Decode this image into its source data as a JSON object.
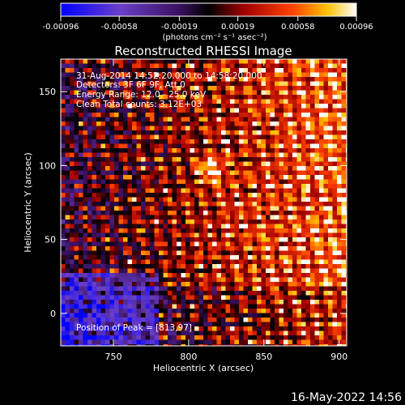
{
  "chart_data": {
    "type": "heatmap",
    "title": "Reconstructed RHESSI Image",
    "xlabel": "Heliocentric X (arcsec)",
    "ylabel": "Heliocentric Y (arcsec)",
    "xlim": [
      715,
      905
    ],
    "ylim": [
      -22,
      172
    ],
    "xticks": [
      750,
      800,
      850,
      900
    ],
    "yticks": [
      0,
      50,
      100,
      150
    ],
    "grid": false,
    "colorbar": {
      "position": "top",
      "range": [
        -0.00096,
        0.00096
      ],
      "ticks": [
        -0.00096,
        -0.00058,
        -0.00019,
        0.00019,
        0.00058,
        0.00096
      ],
      "tick_labels": [
        "-0.00096",
        "-0.00058",
        "-0.00019",
        "0.00019",
        "0.00058",
        "0.00096"
      ],
      "units": "(photons cm⁻² s⁻¹ asec⁻²)",
      "colors": [
        "#0000ff",
        "#6a3fc8",
        "#3a1060",
        "#000000",
        "#a00000",
        "#ff4000",
        "#ffc000",
        "#ffffff"
      ]
    },
    "annotations": {
      "time_range": "31-Aug-2014 14:52:20.000 to 14:58:20.000",
      "detectors": "Detectors: 3F 6F 9F, Att 0",
      "energy": "Energy Range: 12.0 - 25.0 keV",
      "method": "Clean     Total counts: 3.12E+03",
      "peak": "Position of Peak = [813,97]"
    },
    "peak": [
      813,
      97
    ]
  },
  "footer": {
    "timestamp": "16-May-2022 14:56"
  }
}
